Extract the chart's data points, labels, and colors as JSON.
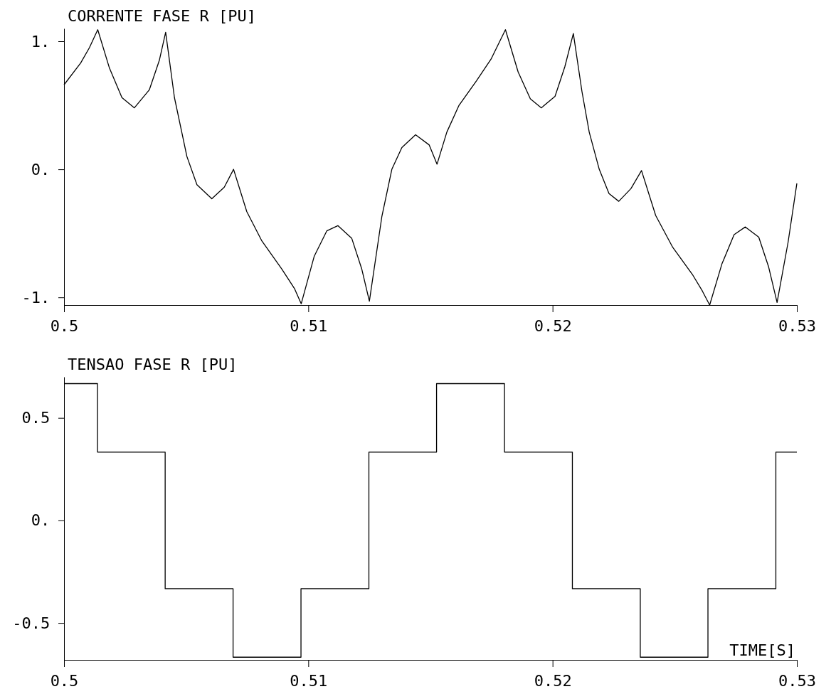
{
  "chart_data": [
    {
      "type": "line",
      "title": "CORRENTE FASE R [PU]",
      "xlim": [
        0.5,
        0.53
      ],
      "ylim": [
        -1.06,
        1.1
      ],
      "xticks": [
        0.5,
        0.51,
        0.52,
        0.53
      ],
      "yticks": [
        {
          "value": -1,
          "label": "-1."
        },
        {
          "value": 0,
          "label": "0."
        },
        {
          "value": 1,
          "label": "1."
        }
      ],
      "series": [
        {
          "color": "#000000",
          "x": [
            0.5,
            0.50068,
            0.50104,
            0.50138,
            0.50186,
            0.50237,
            0.50288,
            0.50349,
            0.5039,
            0.50416,
            0.50452,
            0.50503,
            0.50544,
            0.50605,
            0.50656,
            0.50694,
            0.50748,
            0.5081,
            0.50892,
            0.50943,
            0.50971,
            0.51024,
            0.51076,
            0.51121,
            0.51178,
            0.51219,
            0.5125,
            0.51301,
            0.51342,
            0.51383,
            0.51439,
            0.51495,
            0.51527,
            0.51567,
            0.51617,
            0.51688,
            0.51748,
            0.51807,
            0.51859,
            0.51909,
            0.51954,
            0.5201,
            0.5205,
            0.52085,
            0.5212,
            0.5215,
            0.52191,
            0.52231,
            0.52271,
            0.52321,
            0.52364,
            0.52422,
            0.52492,
            0.52572,
            0.52613,
            0.52643,
            0.52693,
            0.52743,
            0.52789,
            0.52844,
            0.52884,
            0.52919,
            0.52964,
            0.53
          ],
          "values": [
            0.66,
            0.83,
            0.95,
            1.09,
            0.79,
            0.56,
            0.48,
            0.62,
            0.85,
            1.07,
            0.56,
            0.1,
            -0.12,
            -0.23,
            -0.14,
            0.0,
            -0.33,
            -0.56,
            -0.78,
            -0.93,
            -1.05,
            -0.68,
            -0.48,
            -0.44,
            -0.54,
            -0.78,
            -1.03,
            -0.37,
            0.0,
            0.17,
            0.27,
            0.19,
            0.04,
            0.29,
            0.5,
            0.69,
            0.86,
            1.09,
            0.76,
            0.55,
            0.48,
            0.57,
            0.8,
            1.06,
            0.61,
            0.29,
            0.0,
            -0.19,
            -0.25,
            -0.15,
            -0.01,
            -0.36,
            -0.61,
            -0.82,
            -0.95,
            -1.06,
            -0.74,
            -0.51,
            -0.45,
            -0.53,
            -0.76,
            -1.04,
            -0.57,
            -0.11
          ]
        }
      ]
    },
    {
      "type": "step",
      "title": "TENSAO FASE R [PU]",
      "xlabel": "TIME[S]",
      "xlim": [
        0.5,
        0.53
      ],
      "ylim": [
        -0.68,
        0.7
      ],
      "xticks": [
        0.5,
        0.51,
        0.52,
        0.53
      ],
      "yticks": [
        {
          "value": -0.5,
          "label": "-0.5"
        },
        {
          "value": 0,
          "label": "0."
        },
        0.5
      ],
      "series": [
        {
          "color": "#000000",
          "x": [
            0.5,
            0.50137,
            0.50414,
            0.50692,
            0.5097,
            0.51248,
            0.51525,
            0.51803,
            0.52081,
            0.52359,
            0.52636,
            0.52914,
            0.53
          ],
          "values": [
            0.667,
            0.333,
            -0.333,
            -0.667,
            -0.333,
            0.333,
            0.667,
            0.333,
            -0.333,
            -0.667,
            -0.333,
            0.333,
            0.333
          ]
        }
      ]
    }
  ]
}
